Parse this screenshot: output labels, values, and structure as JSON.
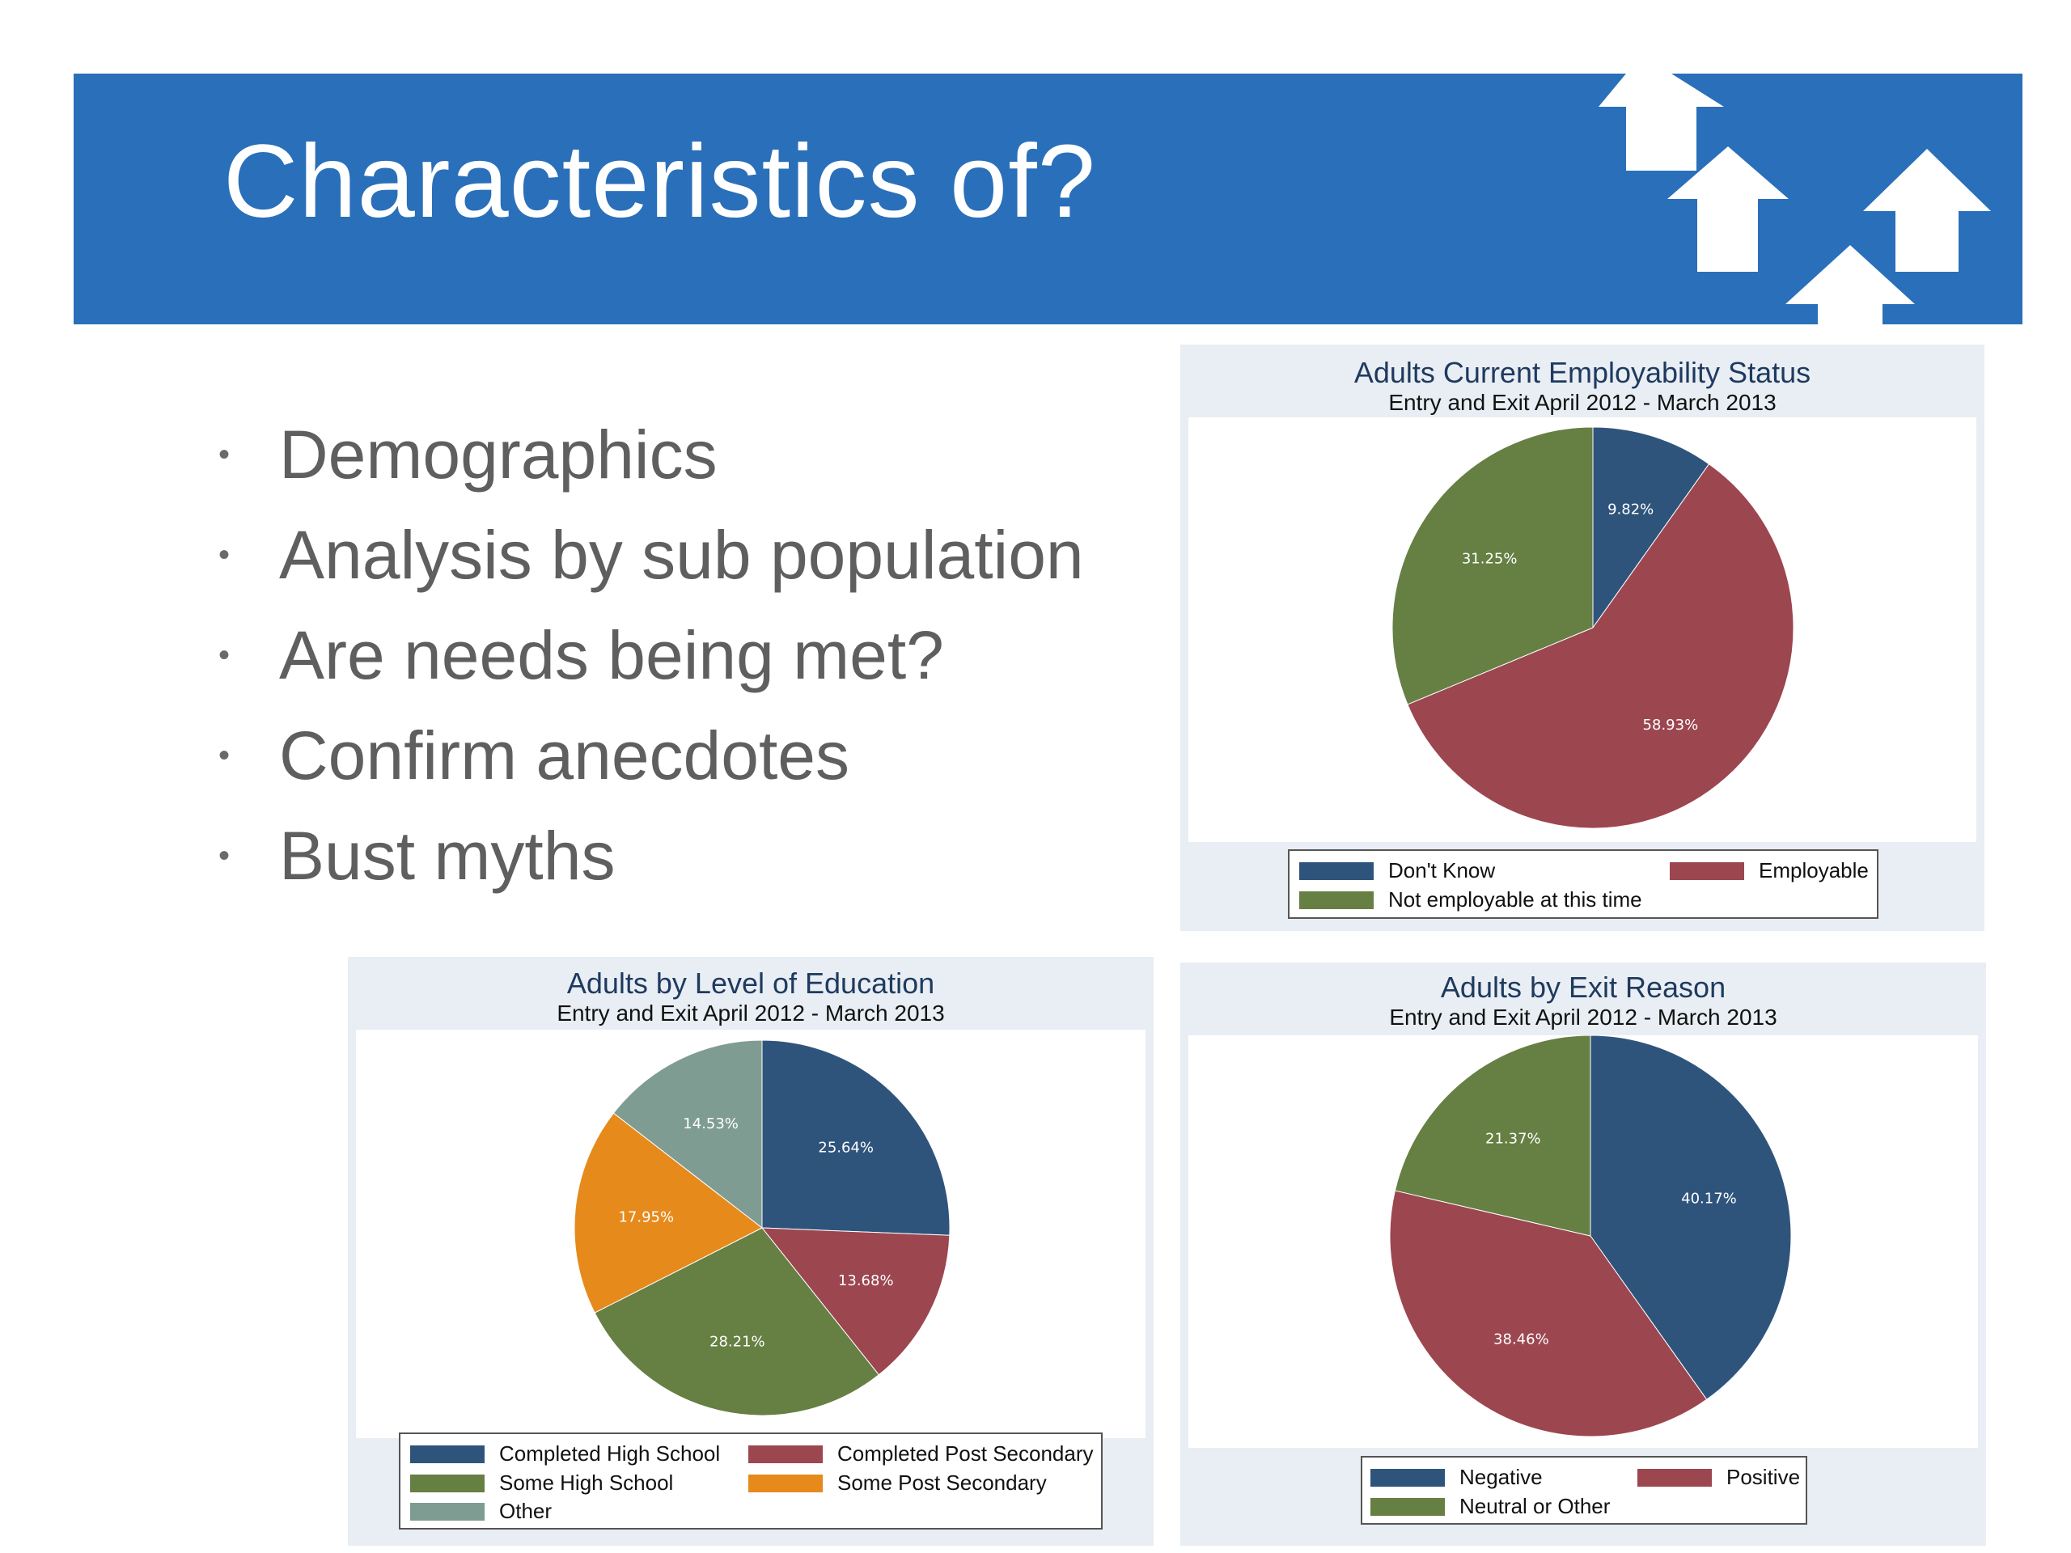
{
  "title": "Characteristics of?",
  "bullets": [
    "Demographics",
    "Analysis by sub population",
    "Are needs being met?",
    "Confirm anecdotes",
    "Bust myths"
  ],
  "bullet_glyph": "•",
  "colors": {
    "banner": "#2a6fb9",
    "navy": "#2f547c",
    "red": "#9c4650",
    "green": "#667f43",
    "orange": "#e68a1c",
    "grey": "#7f9c92"
  },
  "icons": [
    "up-arrow-icon"
  ],
  "chart_data": [
    {
      "type": "pie",
      "title": "Adults Current Employability Status",
      "subtitle": "Entry and Exit April 2012 - March 2013",
      "series": [
        {
          "name": "Don't Know",
          "value": 9.82,
          "label": "9.82%",
          "color": "#2f547c"
        },
        {
          "name": "Employable",
          "value": 58.93,
          "label": "58.93%",
          "color": "#9c4650"
        },
        {
          "name": "Not employable at this time",
          "value": 31.25,
          "label": "31.25%",
          "color": "#667f43"
        }
      ],
      "legend_position": "bottom"
    },
    {
      "type": "pie",
      "title": "Adults by Level of Education",
      "subtitle": "Entry and Exit April 2012 - March 2013",
      "series": [
        {
          "name": "Completed High School",
          "value": 25.64,
          "label": "25.64%",
          "color": "#2f547c"
        },
        {
          "name": "Completed Post Secondary",
          "value": 13.68,
          "label": "13.68%",
          "color": "#9c4650"
        },
        {
          "name": "Some High School",
          "value": 28.21,
          "label": "28.21%",
          "color": "#667f43"
        },
        {
          "name": "Some Post Secondary",
          "value": 17.95,
          "label": "17.95%",
          "color": "#e68a1c"
        },
        {
          "name": "Other",
          "value": 14.53,
          "label": "14.53%",
          "color": "#7f9c92"
        }
      ],
      "legend_position": "bottom"
    },
    {
      "type": "pie",
      "title": "Adults by Exit Reason",
      "subtitle": "Entry and Exit April 2012 - March 2013",
      "series": [
        {
          "name": "Negative",
          "value": 40.17,
          "label": "40.17%",
          "color": "#2f547c"
        },
        {
          "name": "Positive",
          "value": 38.46,
          "label": "38.46%",
          "color": "#9c4650"
        },
        {
          "name": "Neutral or Other",
          "value": 21.37,
          "label": "21.37%",
          "color": "#667f43"
        }
      ],
      "legend_position": "bottom"
    }
  ]
}
